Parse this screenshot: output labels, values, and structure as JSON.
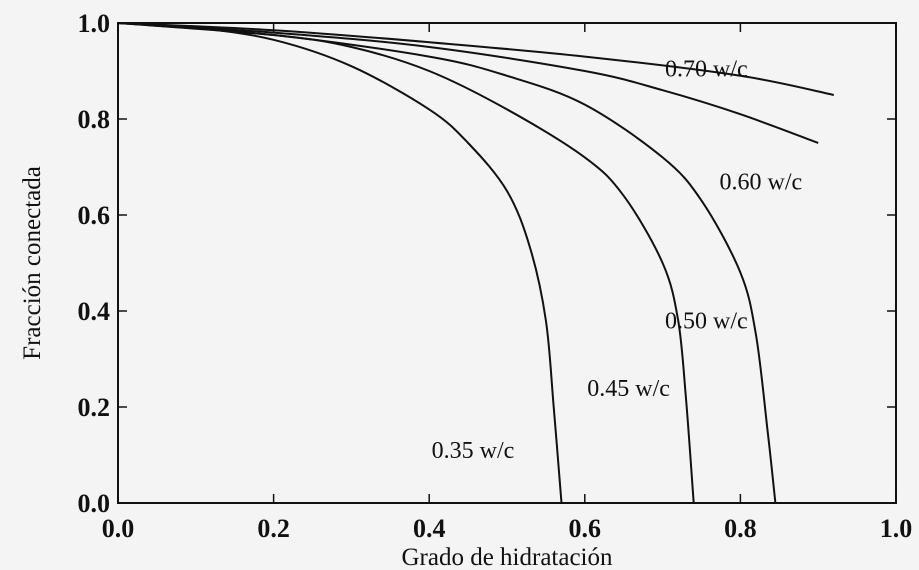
{
  "chart_data": {
    "type": "line",
    "xlabel": "Grado de hidratación",
    "ylabel": "Fracción conectada",
    "xlim": [
      0.0,
      1.0
    ],
    "ylim": [
      0.0,
      1.0
    ],
    "x_ticks": [
      "0.0",
      "0.2",
      "0.4",
      "0.6",
      "0.8",
      "1.0"
    ],
    "y_ticks": [
      "0.0",
      "0.2",
      "0.4",
      "0.6",
      "0.8",
      "1.0"
    ],
    "grid": false,
    "legend": "inline labels",
    "series": [
      {
        "name": "0.70 w/c",
        "x": [
          0.0,
          0.2,
          0.4,
          0.6,
          0.8,
          0.92
        ],
        "y": [
          1.0,
          0.985,
          0.96,
          0.93,
          0.89,
          0.85
        ]
      },
      {
        "name": "0.60 w/c",
        "x": [
          0.0,
          0.2,
          0.4,
          0.6,
          0.7,
          0.8,
          0.9
        ],
        "y": [
          1.0,
          0.98,
          0.95,
          0.9,
          0.86,
          0.81,
          0.75
        ]
      },
      {
        "name": "0.50 w/c",
        "x": [
          0.0,
          0.2,
          0.4,
          0.5,
          0.6,
          0.7,
          0.75,
          0.8,
          0.82,
          0.835,
          0.845
        ],
        "y": [
          1.0,
          0.975,
          0.93,
          0.89,
          0.83,
          0.72,
          0.63,
          0.48,
          0.35,
          0.15,
          0.0
        ]
      },
      {
        "name": "0.45 w/c",
        "x": [
          0.0,
          0.2,
          0.3,
          0.4,
          0.5,
          0.6,
          0.65,
          0.7,
          0.72,
          0.73,
          0.74
        ],
        "y": [
          1.0,
          0.975,
          0.95,
          0.9,
          0.82,
          0.72,
          0.64,
          0.5,
          0.38,
          0.22,
          0.0
        ]
      },
      {
        "name": "0.35 w/c",
        "x": [
          0.0,
          0.1,
          0.2,
          0.3,
          0.4,
          0.45,
          0.5,
          0.53,
          0.55,
          0.56,
          0.57
        ],
        "y": [
          1.0,
          0.99,
          0.965,
          0.91,
          0.82,
          0.75,
          0.65,
          0.53,
          0.38,
          0.2,
          0.0
        ]
      }
    ]
  }
}
